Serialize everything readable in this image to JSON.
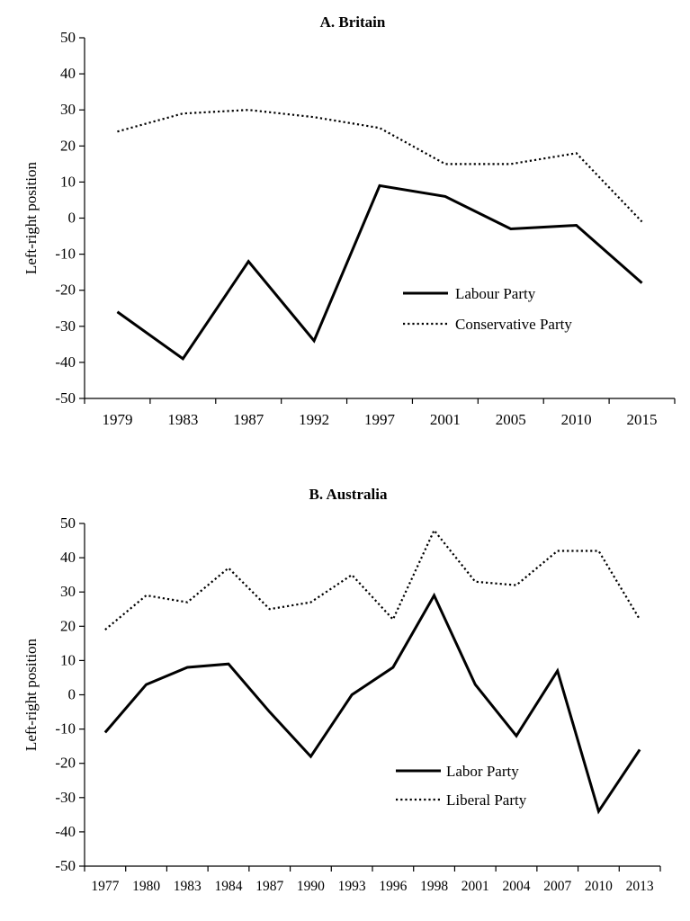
{
  "chart_data": [
    {
      "type": "line",
      "title": "A. Britain",
      "xlabel": "",
      "ylabel": "Left-right position",
      "categories": [
        "1979",
        "1983",
        "1987",
        "1992",
        "1997",
        "2001",
        "2005",
        "2010",
        "2015"
      ],
      "ylim": [
        -50,
        50
      ],
      "yticks": [
        50,
        40,
        30,
        20,
        10,
        0,
        -10,
        -20,
        -30,
        -40,
        -50
      ],
      "yticklabels": [
        "50",
        "40",
        "30",
        "20",
        "10",
        "0",
        "-10",
        "-20",
        "-30",
        "-40",
        "-50"
      ],
      "grid": false,
      "legend": "center-right",
      "series": [
        {
          "name": "Labour Party",
          "style": "solid",
          "values": [
            -26,
            -39,
            -12,
            -34,
            9,
            6,
            -3,
            -2,
            -18
          ]
        },
        {
          "name": "Conservative Party",
          "style": "dotted",
          "values": [
            24,
            29,
            30,
            28,
            25,
            15,
            15,
            18,
            -1
          ]
        }
      ]
    },
    {
      "type": "line",
      "title": "B. Australia",
      "xlabel": "",
      "ylabel": "Left-right position",
      "categories": [
        "1977",
        "1980",
        "1983",
        "1984",
        "1987",
        "1990",
        "1993",
        "1996",
        "1998",
        "2001",
        "2004",
        "2007",
        "2010",
        "2013"
      ],
      "ylim": [
        -50,
        50
      ],
      "yticks": [
        50,
        40,
        30,
        20,
        10,
        0,
        -10,
        -20,
        -30,
        -40,
        -50
      ],
      "yticklabels": [
        "50",
        "40",
        "30",
        "20",
        "10",
        "0",
        "-10",
        "-20",
        "-30",
        "-40",
        "-50"
      ],
      "grid": false,
      "legend": "bottom-right",
      "series": [
        {
          "name": "Labor Party",
          "style": "solid",
          "values": [
            -11,
            3,
            8,
            9,
            -5,
            -18,
            0,
            8,
            29,
            3,
            -12,
            7,
            -34,
            -16
          ]
        },
        {
          "name": "Liberal Party",
          "style": "dotted",
          "values": [
            19,
            29,
            27,
            37,
            25,
            27,
            35,
            22,
            48,
            33,
            32,
            42,
            42,
            22
          ]
        }
      ]
    }
  ],
  "colors": {
    "line": "#000000",
    "axis": "#000000",
    "background": "#ffffff"
  }
}
